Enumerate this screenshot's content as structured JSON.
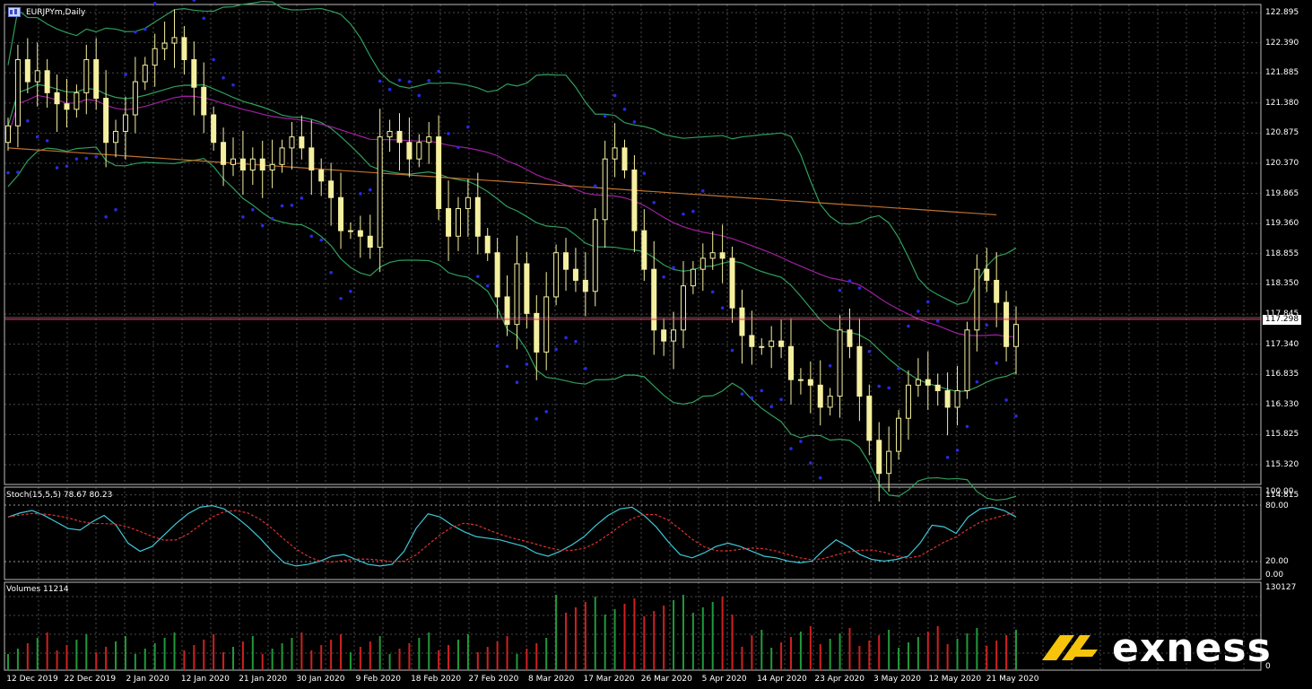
{
  "window": {
    "title": "EURJPYm,Daily"
  },
  "price_axis": {
    "labels": [
      "122.895",
      "122.390",
      "121.885",
      "121.380",
      "120.875",
      "120.370",
      "119.865",
      "119.360",
      "118.855",
      "118.350",
      "117.845",
      "117.340",
      "116.835",
      "116.330",
      "115.825",
      "115.320",
      "114.815"
    ]
  },
  "current_price": "117.298",
  "stoch": {
    "title": "Stoch(15,5,5) 78.67 80.23",
    "axis": [
      "100.00",
      "80.00",
      "20.00",
      "0.00"
    ]
  },
  "volumes": {
    "title": "Volumes 11214",
    "axis_top": "130127",
    "axis_bottom": "0"
  },
  "date_axis": [
    "12 Dec 2019",
    "22 Dec 2019",
    "2 Jan 2020",
    "12 Jan 2020",
    "21 Jan 2020",
    "30 Jan 2020",
    "9 Feb 2020",
    "18 Feb 2020",
    "27 Feb 2020",
    "8 Mar 2020",
    "17 Mar 2020",
    "26 Mar 2020",
    "5 Apr 2020",
    "14 Apr 2020",
    "23 Apr 2020",
    "3 May 2020",
    "12 May 2020",
    "21 May 2020"
  ],
  "brand": {
    "name": "exness"
  },
  "colors": {
    "background": "#000000",
    "grid": "#4a4a4a",
    "candle": "#f5f0a0",
    "bands": "#2e9e5e",
    "sar": "#2a2ae0",
    "ma_slow": "#c07030",
    "ma_mid": "#a01ea0",
    "stoch_main": "#3ec8d8",
    "stoch_signal": "#e03030",
    "vol_up": "#1f9a3a",
    "vol_down": "#d02020",
    "bid_line": "#ff3060"
  },
  "chart_data": {
    "type": "candlestick",
    "symbol": "EURJPYm",
    "timeframe": "Daily",
    "ylim": [
      114.4,
      123.1
    ],
    "closes": [
      120.9,
      122.1,
      121.7,
      121.9,
      121.5,
      121.3,
      121.2,
      121.5,
      122.1,
      121.4,
      120.6,
      120.8,
      121.1,
      121.7,
      122.0,
      122.3,
      122.4,
      122.5,
      122.1,
      121.6,
      121.1,
      120.6,
      120.2,
      120.3,
      120.1,
      120.3,
      120.1,
      120.2,
      120.5,
      120.7,
      120.5,
      120.1,
      119.9,
      119.6,
      119.0,
      119.0,
      118.9,
      118.7,
      120.7,
      120.8,
      120.6,
      120.3,
      120.6,
      120.7,
      119.4,
      118.9,
      119.4,
      119.6,
      118.9,
      118.6,
      117.8,
      117.3,
      118.4,
      117.5,
      116.8,
      117.8,
      118.6,
      118.3,
      118.1,
      117.9,
      119.2,
      120.3,
      120.5,
      120.1,
      119.0,
      118.3,
      117.2,
      117.0,
      117.2,
      118.0,
      118.3,
      118.5,
      118.6,
      118.5,
      117.6,
      117.1,
      116.9,
      116.9,
      117.0,
      116.9,
      116.3,
      116.3,
      116.2,
      115.8,
      116.0,
      117.2,
      116.9,
      116.0,
      115.2,
      114.6,
      115.0,
      115.6,
      116.2,
      116.3,
      116.2,
      116.1,
      115.8,
      116.1,
      117.2,
      118.3,
      118.1,
      117.7,
      116.9,
      117.3
    ],
    "stoch_main": [
      70,
      75,
      78,
      72,
      64,
      56,
      54,
      64,
      72,
      60,
      38,
      28,
      34,
      48,
      62,
      74,
      82,
      84,
      80,
      70,
      58,
      44,
      28,
      14,
      10,
      12,
      16,
      22,
      24,
      18,
      12,
      10,
      12,
      28,
      56,
      74,
      70,
      60,
      52,
      46,
      44,
      42,
      38,
      34,
      26,
      22,
      28,
      36,
      46,
      60,
      72,
      80,
      82,
      72,
      58,
      40,
      24,
      20,
      26,
      34,
      38,
      34,
      28,
      22,
      20,
      16,
      14,
      16,
      30,
      42,
      34,
      24,
      18,
      16,
      18,
      22,
      38,
      60,
      58,
      50,
      70,
      80,
      82,
      78,
      70
    ]
  }
}
